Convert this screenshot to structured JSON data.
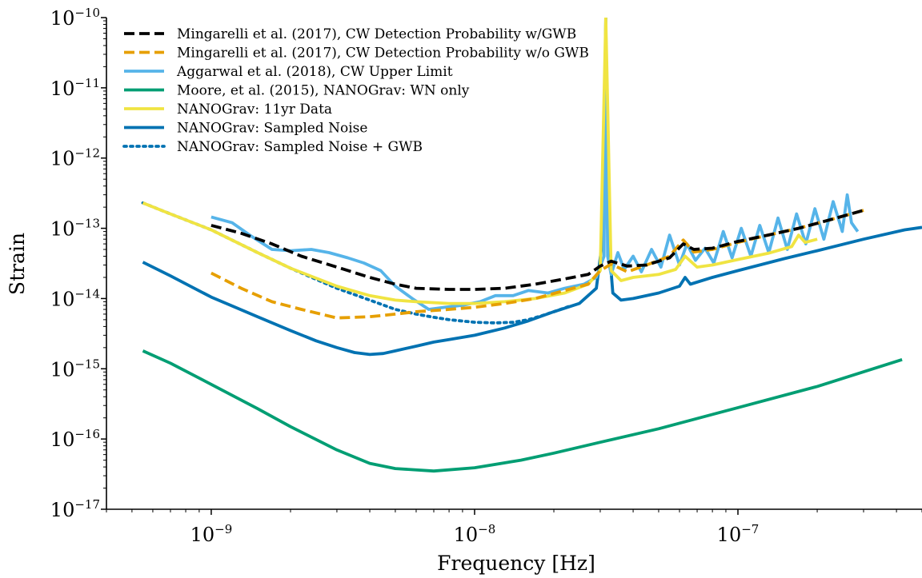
{
  "chart_data": {
    "type": "line",
    "xlabel": "Frequency [Hz]",
    "ylabel": "Strain",
    "xscale": "log",
    "yscale": "log",
    "xlim": [
      4e-10,
      5e-07
    ],
    "ylim": [
      1e-17,
      1e-10
    ],
    "grid": false,
    "legend_location": "upper-left",
    "x_ticks": [
      {
        "value": 1e-09,
        "base": "10",
        "exp": "−9"
      },
      {
        "value": 1e-08,
        "base": "10",
        "exp": "−8"
      },
      {
        "value": 1e-07,
        "base": "10",
        "exp": "−7"
      }
    ],
    "y_ticks": [
      {
        "value": 1e-10,
        "base": "10",
        "exp": "−10"
      },
      {
        "value": 1e-11,
        "base": "10",
        "exp": "−11"
      },
      {
        "value": 1e-12,
        "base": "10",
        "exp": "−12"
      },
      {
        "value": 1e-13,
        "base": "10",
        "exp": "−13"
      },
      {
        "value": 1e-14,
        "base": "10",
        "exp": "−14"
      },
      {
        "value": 1e-15,
        "base": "10",
        "exp": "−15"
      },
      {
        "value": 1e-16,
        "base": "10",
        "exp": "−16"
      },
      {
        "value": 1e-17,
        "base": "10",
        "exp": "−17"
      }
    ],
    "series": [
      {
        "name": "Mingarelli et al. (2017), CW Detection Probability w/GWB",
        "color": "#000000",
        "style": "dashed",
        "x": [
          1e-09,
          1.3e-09,
          1.7e-09,
          2.2e-09,
          3e-09,
          4e-09,
          5e-09,
          6e-09,
          8e-09,
          1e-08,
          1.3e-08,
          1.7e-08,
          2.2e-08,
          2.7e-08,
          3e-08,
          3.3e-08,
          3.8e-08,
          4.5e-08,
          5.5e-08,
          6.2e-08,
          6.8e-08,
          8e-08,
          1e-07,
          1.3e-07,
          1.7e-07,
          2.2e-07,
          3e-07
        ],
        "y": [
          1.1e-13,
          8.5e-14,
          6e-14,
          4e-14,
          2.8e-14,
          2e-14,
          1.6e-14,
          1.4e-14,
          1.35e-14,
          1.35e-14,
          1.4e-14,
          1.6e-14,
          1.9e-14,
          2.2e-14,
          2.9e-14,
          3.4e-14,
          2.9e-14,
          3e-14,
          3.8e-14,
          6e-14,
          5e-14,
          5.2e-14,
          6.5e-14,
          8e-14,
          1e-13,
          1.3e-13,
          1.8e-13
        ]
      },
      {
        "name": "Mingarelli et al. (2017), CW Detection Probability w/o GWB",
        "color": "#E69F00",
        "style": "dashed",
        "x": [
          1e-09,
          1.3e-09,
          1.7e-09,
          2.2e-09,
          3e-09,
          4e-09,
          5e-09,
          6e-09,
          8e-09,
          1e-08,
          1.3e-08,
          1.7e-08,
          2.2e-08,
          2.7e-08,
          3e-08,
          3.3e-08,
          3.8e-08,
          4.5e-08,
          5.5e-08,
          6.2e-08,
          6.8e-08,
          8e-08,
          1e-07,
          1.3e-07,
          1.7e-07,
          2.2e-07,
          3e-07
        ],
        "y": [
          2.3e-14,
          1.4e-14,
          9e-15,
          7e-15,
          5.3e-15,
          5.5e-15,
          6e-15,
          6.5e-15,
          7e-15,
          7.5e-15,
          8.5e-15,
          1e-14,
          1.3e-14,
          1.6e-14,
          2.5e-14,
          3.1e-14,
          2.4e-14,
          3e-14,
          4e-14,
          6.8e-14,
          4.6e-14,
          5e-14,
          6.3e-14,
          8e-14,
          1e-13,
          1.3e-13,
          1.8e-13
        ]
      },
      {
        "name": "Aggarwal et al. (2018), CW Upper Limit",
        "color": "#56B4E9",
        "style": "solid",
        "x": [
          1e-09,
          1.2e-09,
          1.4e-09,
          1.7e-09,
          2e-09,
          2.4e-09,
          2.8e-09,
          3.3e-09,
          3.8e-09,
          4.4e-09,
          5e-09,
          5.8e-09,
          6.7e-09,
          7.7e-09,
          9e-09,
          1.05e-08,
          1.2e-08,
          1.4e-08,
          1.6e-08,
          1.9e-08,
          2.2e-08,
          2.6e-08,
          2.9e-08,
          3.1e-08,
          3.15e-08,
          3.2e-08,
          3.3e-08,
          3.5e-08,
          3.7e-08,
          4e-08,
          4.3e-08,
          4.7e-08,
          5.1e-08,
          5.5e-08,
          6e-08,
          6.4e-08,
          6.9e-08,
          7.5e-08,
          8.1e-08,
          8.8e-08,
          9.5e-08,
          1.03e-07,
          1.12e-07,
          1.21e-07,
          1.31e-07,
          1.42e-07,
          1.54e-07,
          1.67e-07,
          1.81e-07,
          1.96e-07,
          2.12e-07,
          2.3e-07,
          2.49e-07,
          2.6e-07,
          2.7e-07,
          2.85e-07
        ],
        "y": [
          1.45e-13,
          1.2e-13,
          8e-14,
          5e-14,
          4.8e-14,
          5e-14,
          4.5e-14,
          3.8e-14,
          3.2e-14,
          2.5e-14,
          1.5e-14,
          1e-14,
          7e-15,
          7.5e-15,
          8e-15,
          9e-15,
          1.1e-14,
          1.1e-14,
          1.3e-14,
          1.2e-14,
          1.4e-14,
          1.6e-14,
          2e-14,
          4e-14,
          1e-10,
          4e-14,
          2.2e-14,
          4.5e-14,
          2.6e-14,
          4e-14,
          2.4e-14,
          5e-14,
          2.8e-14,
          8e-14,
          3e-14,
          6e-14,
          3.5e-14,
          5.2e-14,
          3.2e-14,
          9e-14,
          3.8e-14,
          1e-13,
          4e-14,
          1.1e-13,
          4.5e-14,
          1.4e-13,
          5e-14,
          1.6e-13,
          6e-14,
          1.9e-13,
          7e-14,
          2.4e-13,
          9e-14,
          3e-13,
          1.2e-13,
          9e-14
        ]
      },
      {
        "name": "Moore, et al. (2015), NANOGrav: WN only",
        "color": "#009E73",
        "style": "solid",
        "x": [
          5.5e-10,
          7e-10,
          1e-09,
          1.5e-09,
          2e-09,
          3e-09,
          4e-09,
          5e-09,
          7e-09,
          1e-08,
          1.5e-08,
          2e-08,
          3e-08,
          5e-08,
          1e-07,
          2e-07,
          4.2e-07
        ],
        "y": [
          1.8e-15,
          1.2e-15,
          6e-16,
          2.7e-16,
          1.5e-16,
          7e-17,
          4.5e-17,
          3.8e-17,
          3.5e-17,
          3.9e-17,
          5e-17,
          6.3e-17,
          9e-17,
          1.4e-16,
          2.8e-16,
          5.6e-16,
          1.35e-15
        ]
      },
      {
        "name": "NANOGrav: 11yr Data",
        "color": "#F0E442",
        "style": "solid",
        "x": [
          5.5e-10,
          7e-10,
          1e-09,
          1.5e-09,
          2e-09,
          3e-09,
          4e-09,
          5e-09,
          6e-09,
          8e-09,
          1e-08,
          1.3e-08,
          1.7e-08,
          2.2e-08,
          2.7e-08,
          3e-08,
          3.15e-08,
          3.3e-08,
          3.6e-08,
          4e-08,
          5e-08,
          5.8e-08,
          6.3e-08,
          7e-08,
          8e-08,
          1e-07,
          1.3e-07,
          1.6e-07,
          1.7e-07,
          1.8e-07,
          2e-07
        ],
        "y": [
          2.3e-13,
          1.6e-13,
          9.5e-14,
          4.5e-14,
          2.7e-14,
          1.5e-14,
          1.1e-14,
          9.5e-15,
          9e-15,
          8.5e-15,
          8.5e-15,
          9e-15,
          1e-14,
          1.2e-14,
          1.6e-14,
          2.5e-14,
          1e-10,
          2.5e-14,
          1.8e-14,
          2e-14,
          2.2e-14,
          2.6e-14,
          4e-14,
          2.8e-14,
          3e-14,
          3.6e-14,
          4.4e-14,
          5.5e-14,
          8e-14,
          6.3e-14,
          7e-14
        ]
      },
      {
        "name": "NANOGrav: Sampled Noise",
        "color": "#0072B2",
        "style": "solid",
        "x": [
          5.5e-10,
          7e-10,
          1e-09,
          1.5e-09,
          2e-09,
          2.5e-09,
          3e-09,
          3.5e-09,
          4e-09,
          4.5e-09,
          5e-09,
          6e-09,
          7e-09,
          8e-09,
          1e-08,
          1.3e-08,
          1.6e-08,
          2e-08,
          2.5e-08,
          2.9e-08,
          3.1e-08,
          3.15e-08,
          3.2e-08,
          3.35e-08,
          3.6e-08,
          4e-08,
          5e-08,
          6e-08,
          6.3e-08,
          6.6e-08,
          8e-08,
          1e-07,
          1.5e-07,
          2e-07,
          3e-07,
          4.3e-07,
          5e-07
        ],
        "y": [
          3.3e-14,
          2.1e-14,
          1.05e-14,
          5.5e-15,
          3.5e-15,
          2.5e-15,
          2e-15,
          1.7e-15,
          1.6e-15,
          1.65e-15,
          1.8e-15,
          2.1e-15,
          2.4e-15,
          2.6e-15,
          3e-15,
          3.8e-15,
          4.8e-15,
          6.5e-15,
          8.5e-15,
          1.4e-14,
          1e-13,
          1e-10,
          1e-13,
          1.2e-14,
          9.5e-15,
          1e-14,
          1.2e-14,
          1.5e-14,
          2e-14,
          1.6e-14,
          2e-14,
          2.5e-14,
          3.7e-14,
          4.8e-14,
          7e-14,
          9.5e-14,
          1.03e-13
        ]
      },
      {
        "name": "NANOGrav: Sampled Noise + GWB",
        "color": "#0072B2",
        "style": "dotted",
        "x": [
          5.5e-10,
          7e-10,
          1e-09,
          1.5e-09,
          2e-09,
          3e-09,
          4e-09,
          5e-09,
          6e-09,
          7e-09,
          8e-09,
          1e-08,
          1.2e-08,
          1.4e-08,
          1.6e-08,
          1.8e-08,
          2e-08,
          2.3e-08
        ],
        "y": [
          2.3e-13,
          1.6e-13,
          9.5e-14,
          4.5e-14,
          2.7e-14,
          1.4e-14,
          9.5e-15,
          7e-15,
          6e-15,
          5.4e-15,
          5e-15,
          4.6e-15,
          4.5e-15,
          4.6e-15,
          5e-15,
          5.7e-15,
          6.5e-15,
          7.8e-15
        ]
      }
    ]
  }
}
